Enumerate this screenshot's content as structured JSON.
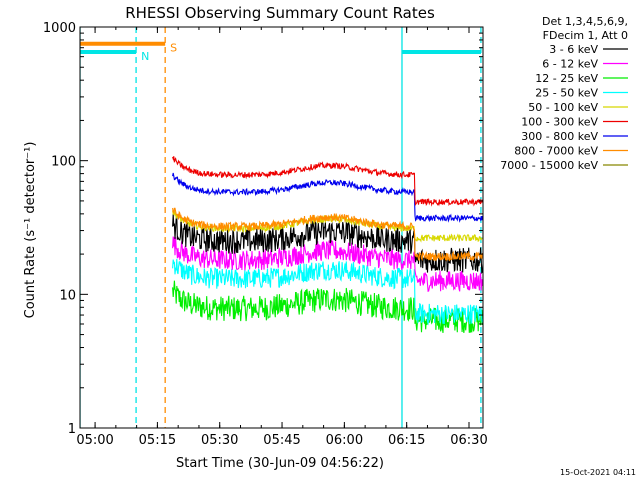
{
  "chart_data": {
    "type": "line",
    "title": "RHESSI Observing Summary Count Rates",
    "xlabel": "Start Time (30-Jun-09 04:56:22)",
    "ylabel": "Count Rate (s⁻¹ detector⁻¹)",
    "y_scale": "log",
    "ylim": [
      1,
      1000
    ],
    "xlim_minutes": [
      0,
      97
    ],
    "x_ticks": [
      {
        "label": "05:00",
        "minute": 3.63
      },
      {
        "label": "05:15",
        "minute": 18.63
      },
      {
        "label": "05:30",
        "minute": 33.63
      },
      {
        "label": "05:45",
        "minute": 48.63
      },
      {
        "label": "06:00",
        "minute": 63.63
      },
      {
        "label": "06:15",
        "minute": 78.63
      },
      {
        "label": "06:30",
        "minute": 93.63
      }
    ],
    "y_ticks": [
      {
        "label": "1",
        "value": 1
      },
      {
        "label": "10",
        "value": 10
      },
      {
        "label": "100",
        "value": 100
      },
      {
        "label": "1000",
        "value": 1000
      }
    ],
    "legend_header": [
      "Det 1,3,4,5,6,9,",
      "FDecim 1, Att 0"
    ],
    "series": [
      {
        "name": "3 - 6 keV",
        "color": "#000000",
        "base": 25,
        "noise": 0.22,
        "step": 0.72
      },
      {
        "name": "6 - 12 keV",
        "color": "#ff00ff",
        "base": 18,
        "noise": 0.18,
        "step": 0.7
      },
      {
        "name": "12 - 25 keV",
        "color": "#00ee00",
        "base": 7.8,
        "noise": 0.22,
        "step": 0.82
      },
      {
        "name": "25 - 50 keV",
        "color": "#00ffff",
        "base": 13,
        "noise": 0.18,
        "step": 0.55
      },
      {
        "name": "50 - 100 keV",
        "color": "#d8d800",
        "base": 31,
        "noise": 0.06,
        "step": 0.85
      },
      {
        "name": "100 - 300 keV",
        "color": "#ee0000",
        "base": 78,
        "noise": 0.05,
        "step": 0.63
      },
      {
        "name": "300 - 800 keV",
        "color": "#0000ee",
        "base": 58,
        "noise": 0.05,
        "step": 0.64
      },
      {
        "name": "800 - 7000 keV",
        "color": "#ff8c00",
        "base": 32,
        "noise": 0.07,
        "step": 0.6
      },
      {
        "name": "7000 - 15000 keV",
        "color": "#888800",
        "base": 0,
        "noise": 0,
        "step": 1
      }
    ],
    "segment_start_min": 22.3,
    "segment_end_min": 97.0,
    "drop_min": 80.5,
    "saa_bars": [
      {
        "label": "N",
        "start_min": 0,
        "end_min": 13.5,
        "value": 650,
        "color": "#00e5e5"
      },
      {
        "label": "S",
        "start_min": 0,
        "end_min": 20.5,
        "value": 750,
        "color": "#ff8c00"
      },
      {
        "label": "",
        "start_min": 77.5,
        "end_min": 96.5,
        "value": 650,
        "color": "#00e5e5"
      }
    ],
    "vlines": [
      {
        "minute": 0,
        "color": "#00e5e5",
        "dash": false
      },
      {
        "minute": 13.5,
        "color": "#00e5e5",
        "dash": true
      },
      {
        "minute": 20.5,
        "color": "#ff8c00",
        "dash": true
      },
      {
        "minute": 77.5,
        "color": "#00e5e5",
        "dash": false
      },
      {
        "minute": 96.5,
        "color": "#00e5e5",
        "dash": true
      }
    ]
  },
  "footer_timestamp": "15-Oct-2021 04:11"
}
